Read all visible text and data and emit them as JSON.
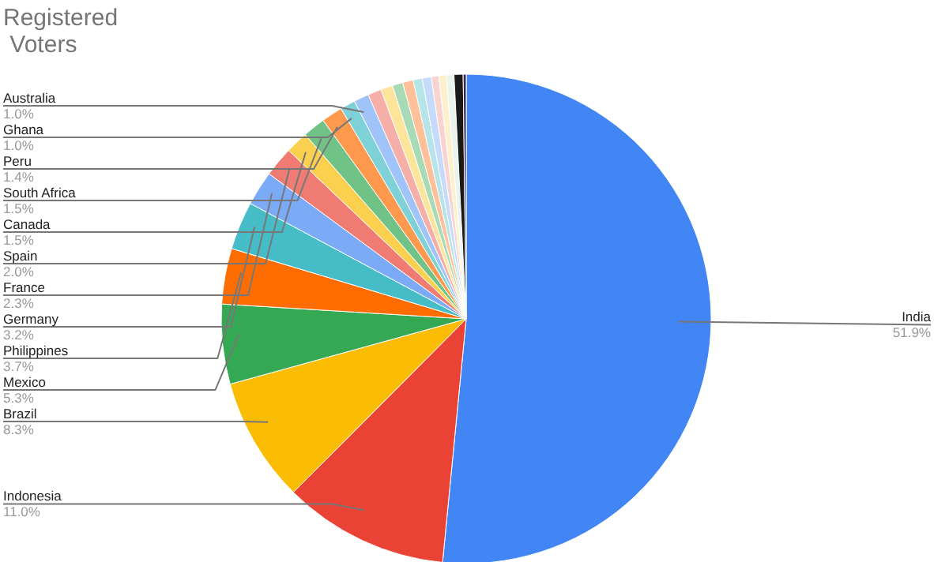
{
  "chart_data": {
    "type": "pie",
    "title": "Registered\n Voters",
    "categories": [
      "India",
      "Indonesia",
      "Brazil",
      "Mexico",
      "Philippines",
      "Germany",
      "France",
      "Spain",
      "Canada",
      "South Africa",
      "Peru",
      "Ghana",
      "Australia",
      null,
      null,
      null,
      null,
      null,
      null,
      null,
      null,
      null,
      null,
      null
    ],
    "values": [
      51.9,
      11.0,
      8.3,
      5.3,
      3.7,
      3.2,
      2.3,
      2.0,
      1.5,
      1.5,
      1.4,
      1.0,
      1.0,
      0.9,
      0.8,
      0.7,
      0.7,
      0.6,
      0.6,
      0.5,
      0.5,
      0.5,
      0.6,
      0.2
    ],
    "colors": [
      "#4285f4",
      "#ea4335",
      "#fbbc04",
      "#34a853",
      "#ff6d01",
      "#46bdc6",
      "#7baaf7",
      "#f07b72",
      "#fcd04f",
      "#71c287",
      "#ff994d",
      "#7ed1d7",
      "#a0c3f9",
      "#f6aea9",
      "#fde49b",
      "#a8dab5",
      "#ffc09a",
      "#b5e5e8",
      "#c6dafc",
      "#f9d3d0",
      "#fef0cd",
      "#e9f5ec",
      "#1a1a1a",
      "#3c2a4a"
    ],
    "value_labels": [
      "51.9%",
      "11.0%",
      "8.3%",
      "5.3%",
      "3.7%",
      "3.2%",
      "2.3%",
      "2.0%",
      "1.5%",
      "1.5%",
      "1.4%",
      "1.0%",
      "1.0%",
      null,
      null,
      null,
      null,
      null,
      null,
      null,
      null,
      null,
      null,
      null
    ]
  }
}
